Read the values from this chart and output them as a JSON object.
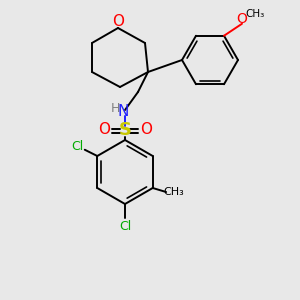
{
  "bg_color": "#e8e8e8",
  "bond_color": "#000000",
  "atom_colors": {
    "O": "#ff0000",
    "N": "#2020ff",
    "S": "#c8c800",
    "Cl": "#00aa00",
    "C": "#000000",
    "H": "#808080"
  },
  "lw": 1.4
}
